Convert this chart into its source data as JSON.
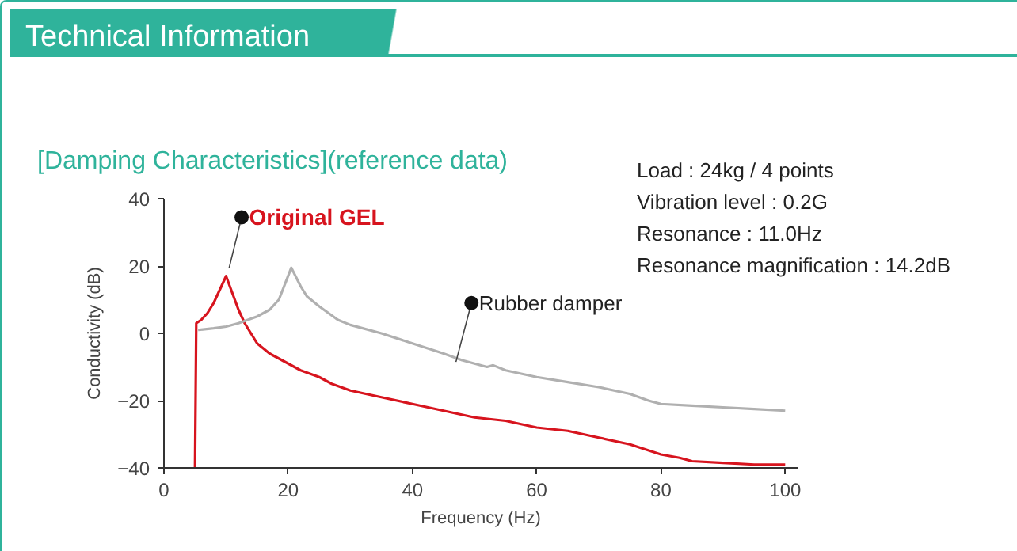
{
  "chart_data": {
    "type": "line",
    "title": "Technical Information",
    "subtitle": "[Damping Characteristics](reference data)",
    "xlabel": "Frequency (Hz)",
    "ylabel": "Conductivity (dB)",
    "annotations": [
      "Load : 24kg / 4 points",
      "Vibration level : 0.2G",
      "Resonance : 11.0Hz",
      "Resonance magnification : 14.2dB"
    ],
    "xlim": [
      0,
      102
    ],
    "ylim": [
      -40,
      40
    ],
    "xticks": [
      0,
      20,
      40,
      60,
      80,
      100
    ],
    "yticks": [
      -40,
      -20,
      0,
      20,
      40
    ],
    "grid": false,
    "line_style": "solid",
    "marker": "none",
    "series": [
      {
        "name": "Original GEL",
        "color": "#d7141e",
        "x": [
          5,
          5.2,
          6,
          7,
          8,
          9,
          10,
          11,
          12,
          13,
          14,
          15,
          17,
          20,
          22,
          25,
          27,
          30,
          35,
          40,
          45,
          50,
          55,
          60,
          65,
          70,
          75,
          80,
          83,
          85,
          90,
          95,
          100
        ],
        "values": [
          -40,
          3,
          4,
          6,
          9,
          13,
          17,
          12,
          7,
          3,
          0,
          -3,
          -6,
          -9,
          -11,
          -13,
          -15,
          -17,
          -19,
          -21,
          -23,
          -25,
          -26,
          -28,
          -29,
          -31,
          -33,
          -36,
          -37,
          -38,
          -38.5,
          -39,
          -39
        ]
      },
      {
        "name": "Rubber damper",
        "color": "#b0b0b0",
        "x": [
          5.5,
          8,
          10,
          12,
          15,
          17,
          18.5,
          20.5,
          22,
          23,
          25,
          28,
          30,
          35,
          40,
          45,
          48,
          50,
          52,
          53,
          55,
          60,
          65,
          70,
          75,
          78,
          80,
          85,
          90,
          95,
          100
        ],
        "values": [
          1,
          1.5,
          2,
          3,
          5,
          7,
          10,
          19.5,
          14,
          11,
          8,
          4,
          2.5,
          0,
          -3,
          -6,
          -8,
          -9,
          -10,
          -9.5,
          -11,
          -13,
          -14.5,
          -16,
          -18,
          -20,
          -21,
          -21.5,
          -22,
          -22.5,
          -23
        ]
      }
    ]
  }
}
